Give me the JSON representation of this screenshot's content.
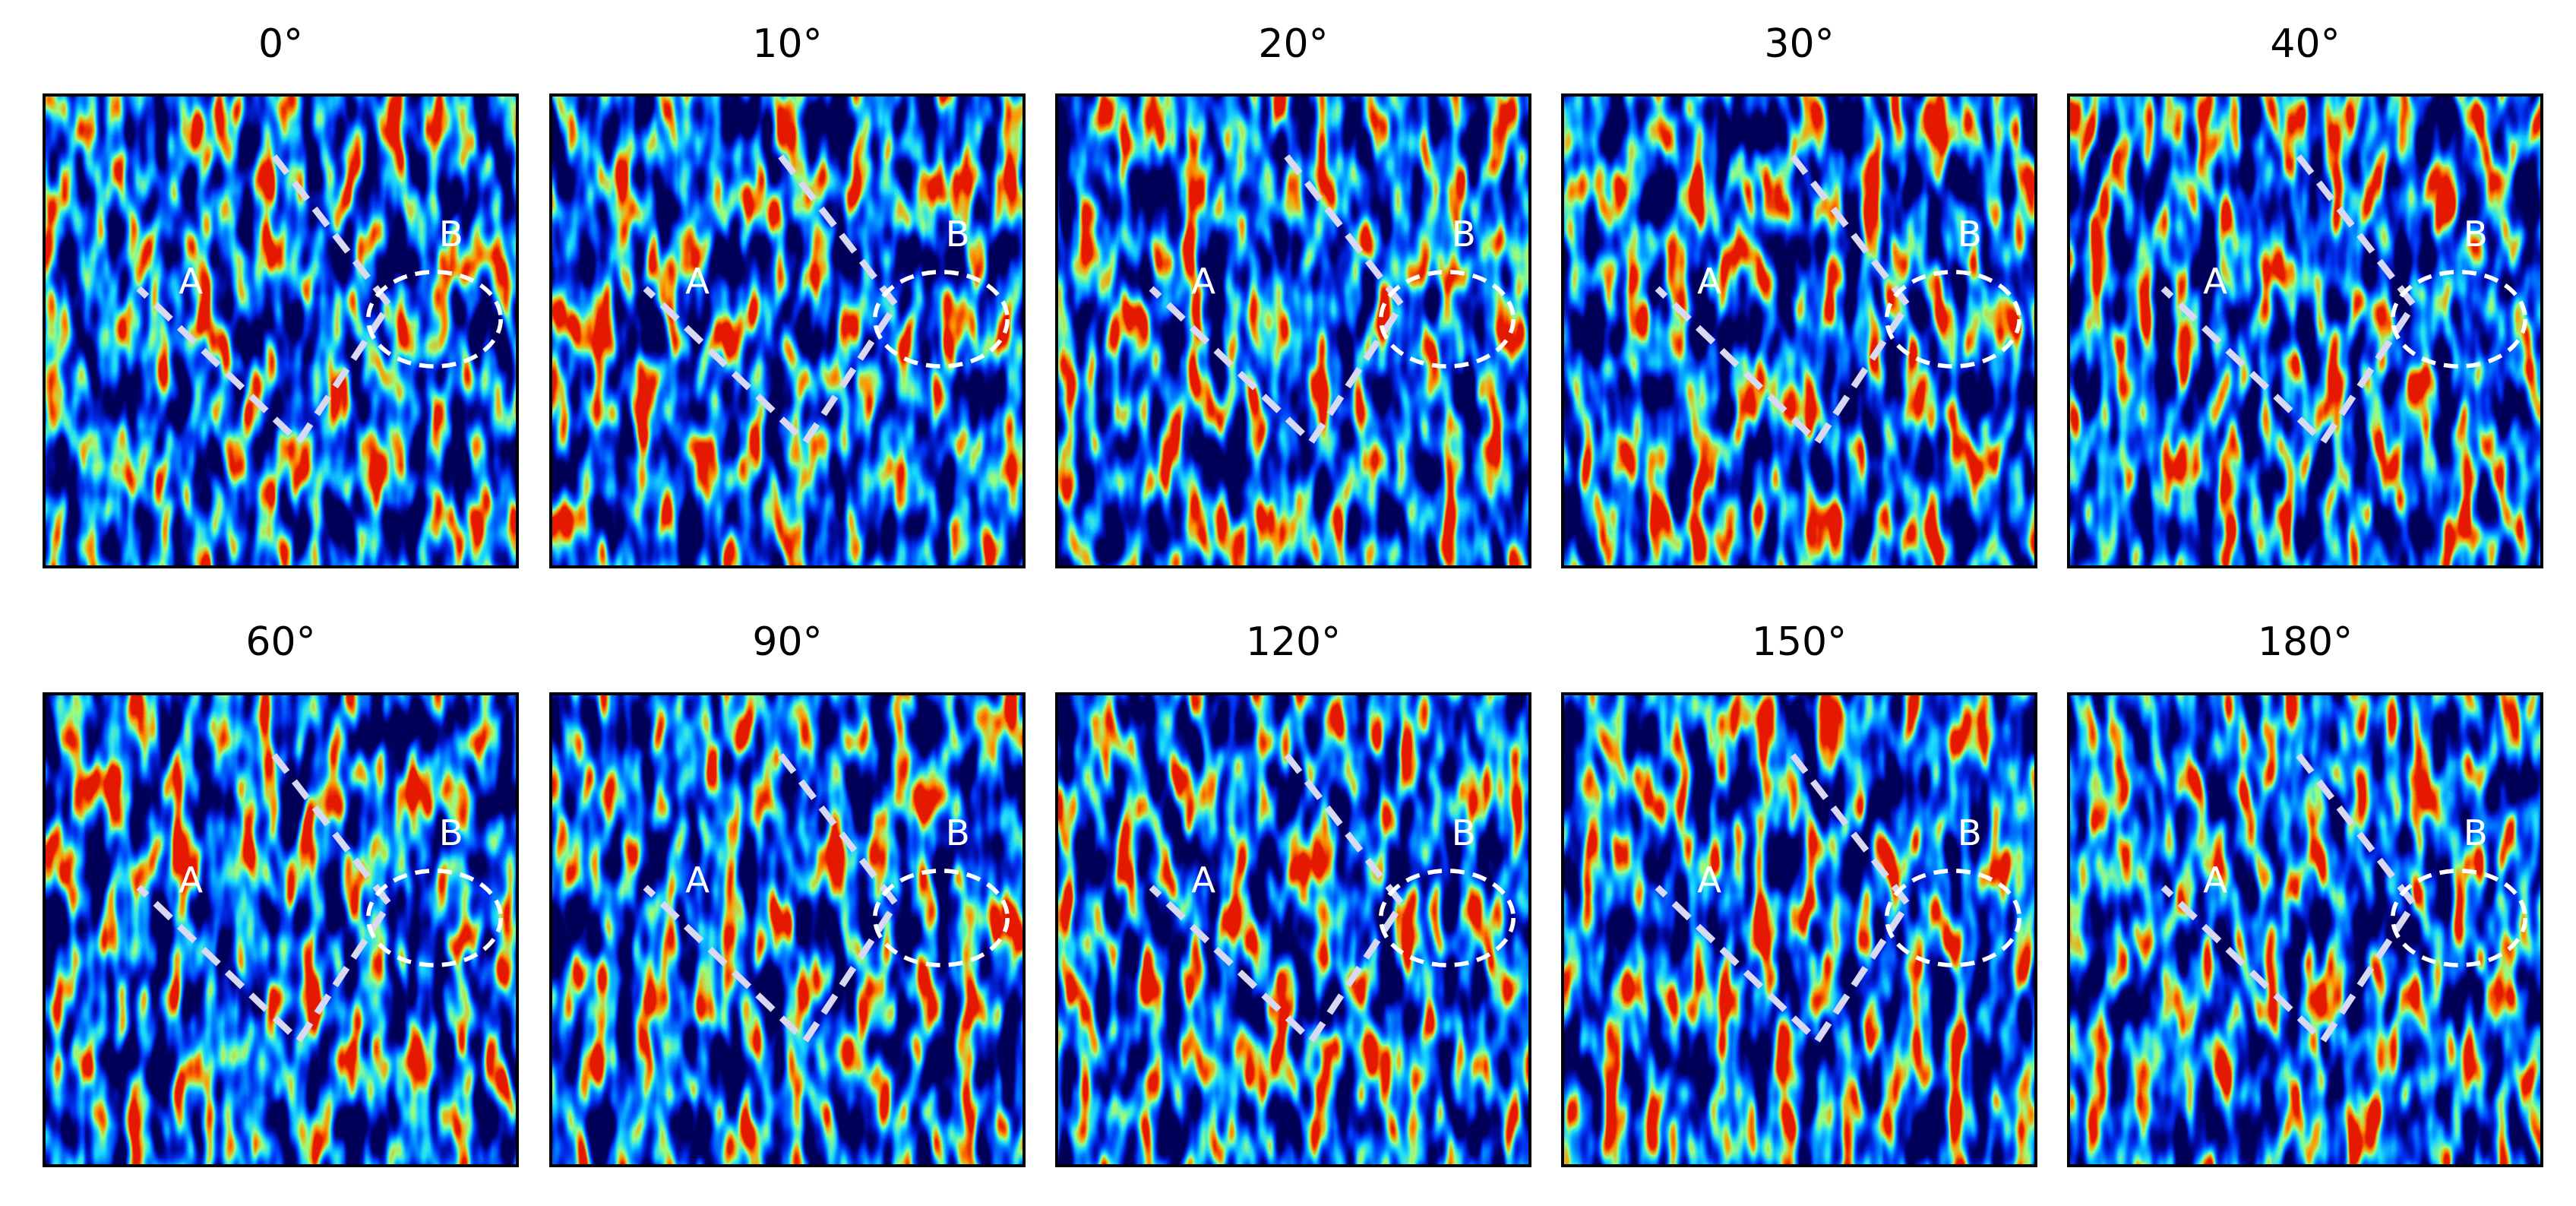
{
  "panels": [
    {
      "title": "0°",
      "label_a": "A",
      "label_b": "B"
    },
    {
      "title": "10°",
      "label_a": "A",
      "label_b": "B"
    },
    {
      "title": "20°",
      "label_a": "A",
      "label_b": "B"
    },
    {
      "title": "30°",
      "label_a": "A",
      "label_b": "B"
    },
    {
      "title": "40°",
      "label_a": "A",
      "label_b": "B"
    },
    {
      "title": "60°",
      "label_a": "A",
      "label_b": "B"
    },
    {
      "title": "90°",
      "label_a": "A",
      "label_b": "B"
    },
    {
      "title": "120°",
      "label_a": "A",
      "label_b": "B"
    },
    {
      "title": "150°",
      "label_a": "A",
      "label_b": "B"
    },
    {
      "title": "180°",
      "label_a": "A",
      "label_b": "B"
    }
  ]
}
